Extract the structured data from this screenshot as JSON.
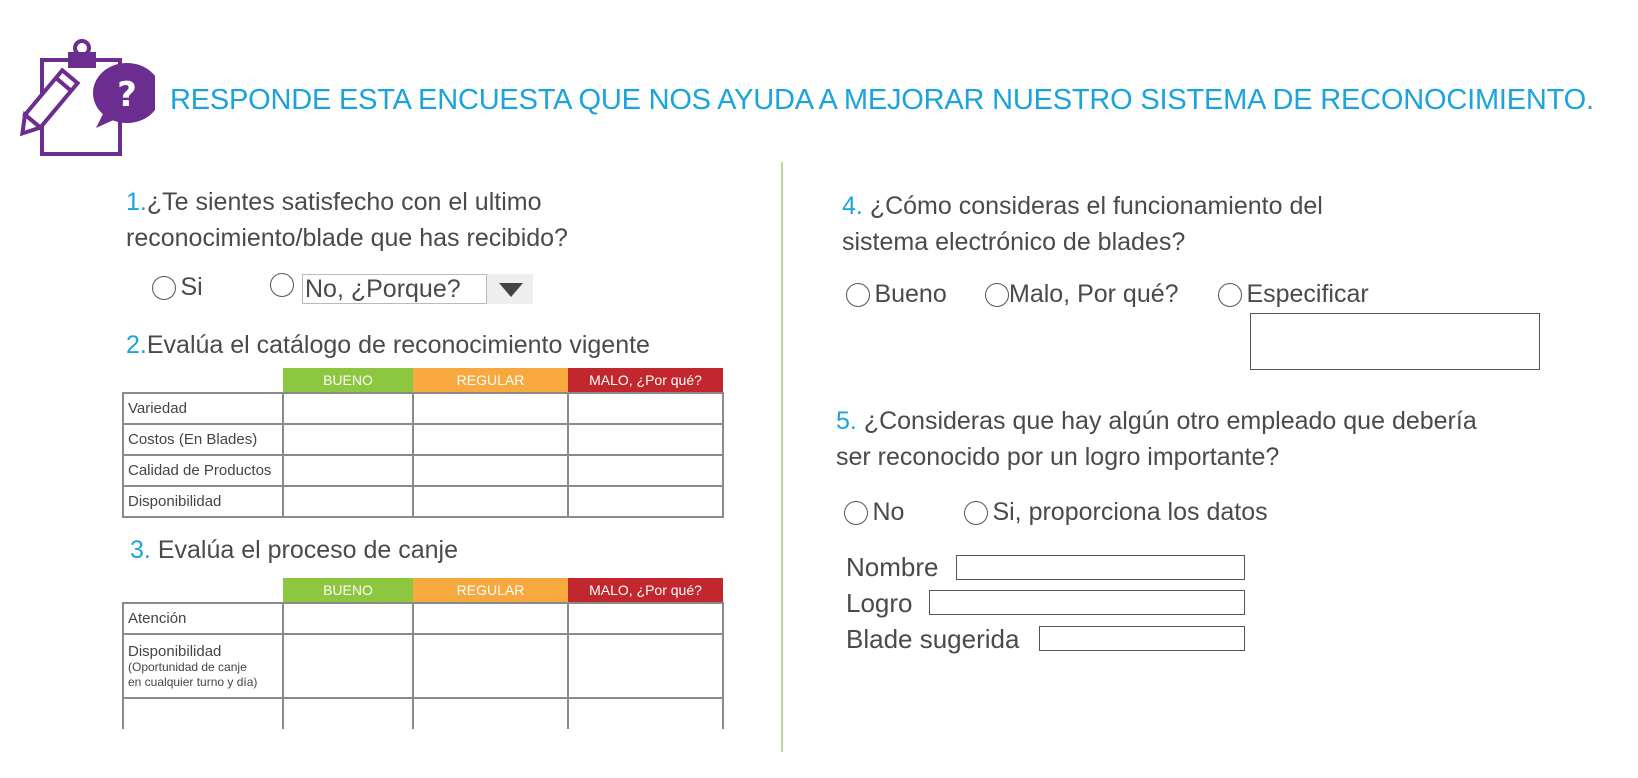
{
  "header": {
    "title": "RESPONDE ESTA ENCUESTA QUE NOS AYUDA A MEJORAR NUESTRO SISTEMA DE RECONOCIMIENTO.",
    "icon": "clipboard-question-icon",
    "icon_color": "#6b2d8f"
  },
  "q1": {
    "number": "1.",
    "line1": "¿Te sientes satisfecho con el ultimo",
    "line2": "reconocimiento/blade que has recibido?",
    "opt_yes": "Si",
    "opt_no": "No, ¿Porque?"
  },
  "q2": {
    "number": "2.",
    "text": "Evalúa el catálogo de reconocimiento vigente",
    "headers": [
      "BUENO",
      "REGULAR",
      "MALO, ¿Por qué?"
    ],
    "rows": [
      "Variedad",
      "Costos (En Blades)",
      "Calidad de Productos",
      "Disponibilidad"
    ]
  },
  "q3": {
    "number": "3.",
    "text": "Evalúa el proceso de canje",
    "headers": [
      "BUENO",
      "REGULAR",
      "MALO, ¿Por qué?"
    ],
    "row1": "Atención",
    "row2": "Disponibilidad",
    "row2_sub1": "(Oportunidad de canje",
    "row2_sub2": "en cualquier turno y día)"
  },
  "q4": {
    "number": "4.",
    "line1": "¿Cómo consideras el funcionamiento del",
    "line2": "sistema electrónico de blades?",
    "opt_good": "Bueno",
    "opt_bad": "Malo, Por qué?",
    "opt_specify": "Especificar"
  },
  "q5": {
    "number": "5.",
    "line1": "¿Consideras que hay algún otro empleado que debería",
    "line2": "ser reconocido por un logro importante?",
    "opt_no": "No",
    "opt_yes": "Si, proporciona los datos",
    "field_name": "Nombre",
    "field_achievement": "Logro",
    "field_blade": "Blade sugerida"
  },
  "colors": {
    "accent": "#1aa3dc",
    "bueno": "#8dc63f",
    "regular": "#f7a940",
    "malo": "#c1272d",
    "divider": "#b9d99a"
  }
}
